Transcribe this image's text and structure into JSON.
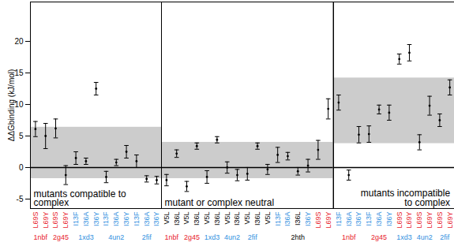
{
  "chart_data": {
    "type": "scatter",
    "ylabel": "ΔΔGbinding (kJ/mol)",
    "ylim": [
      -6.5,
      26.25
    ],
    "yticks": [
      -5,
      0,
      5,
      10,
      15,
      20
    ],
    "baseline": 0,
    "color": "#000000",
    "band_color": "#cccccc",
    "structure_colors": {
      "1nbf": "#e8202a",
      "2g45": "#e8202a",
      "1xd3": "#2f8fe0",
      "4un2": "#2f8fe0",
      "2fif": "#2f8fe0",
      "2hth": "#000000"
    },
    "panels": [
      {
        "annotation": "mutants compatible to complex",
        "categories": [
          "L69S",
          "L69Y",
          "L69S",
          "L69Y",
          "I13F",
          "I36A",
          "I36Y",
          "I13F",
          "I36A",
          "I36Y",
          "I13F",
          "I36A",
          "I36Y"
        ],
        "label_colors": [
          "#e8202a",
          "#e8202a",
          "#e8202a",
          "#e8202a",
          "#2f8fe0",
          "#2f8fe0",
          "#2f8fe0",
          "#2f8fe0",
          "#2f8fe0",
          "#2f8fe0",
          "#2f8fe0",
          "#2f8fe0",
          "#2f8fe0"
        ],
        "structures": [
          "1nbf",
          "1nbf",
          "2g45",
          "2g45",
          "1xd3",
          "1xd3",
          "1xd3",
          "4un2",
          "4un2",
          "4un2",
          "2fif",
          "2fif",
          "2fif"
        ],
        "values": [
          6.1,
          5.0,
          6.2,
          -1.2,
          1.5,
          1.0,
          12.5,
          -1.5,
          0.8,
          2.5,
          1.0,
          -1.8,
          -2.0
        ],
        "errors": [
          1.2,
          2.0,
          1.5,
          1.5,
          1.0,
          0.5,
          1.0,
          0.9,
          0.5,
          1.0,
          1.0,
          0.5,
          0.6
        ],
        "band": [
          -1.75,
          6.4
        ]
      },
      {
        "annotation": "mutant or complex neutral",
        "categories": [
          "V5L",
          "I36L",
          "V5L",
          "I36L",
          "V5L",
          "I36L",
          "V5L",
          "I36L",
          "V5L",
          "I36L",
          "V5L",
          "I13F",
          "I36A",
          "I36L",
          "I36Y",
          "L69S",
          "L69Y"
        ],
        "label_colors": [
          "#000000",
          "#000000",
          "#000000",
          "#000000",
          "#000000",
          "#000000",
          "#000000",
          "#000000",
          "#000000",
          "#000000",
          "#000000",
          "#2f8fe0",
          "#2f8fe0",
          "#000000",
          "#2f8fe0",
          "#e8202a",
          "#e8202a"
        ],
        "structures": [
          "1nbf",
          "1nbf",
          "2g45",
          "2g45",
          "1xd3",
          "1xd3",
          "4un2",
          "4un2",
          "2fif",
          "2fif",
          "2hth",
          "2hth",
          "2hth",
          "2hth",
          "2hth",
          "2hth",
          "2hth"
        ],
        "values": [
          -2.0,
          2.2,
          -3.0,
          3.4,
          -1.5,
          4.4,
          0.0,
          -1.2,
          -1.0,
          3.4,
          -0.3,
          2.0,
          1.8,
          -0.6,
          0.3,
          2.8,
          9.3
        ],
        "errors": [
          0.9,
          0.6,
          0.8,
          0.5,
          1.0,
          0.5,
          0.9,
          0.9,
          1.0,
          0.5,
          0.8,
          1.2,
          0.6,
          0.6,
          1.0,
          1.5,
          1.6
        ],
        "band": [
          -1.75,
          4.0
        ]
      },
      {
        "annotation": "mutants incompatible to complex",
        "categories": [
          "I13F",
          "I36A",
          "I36Y",
          "I13F",
          "I36A",
          "I36Y",
          "L69S",
          "L69Y",
          "L69S",
          "L69Y",
          "L69S",
          "L69Y"
        ],
        "label_colors": [
          "#2f8fe0",
          "#2f8fe0",
          "#2f8fe0",
          "#2f8fe0",
          "#2f8fe0",
          "#2f8fe0",
          "#e8202a",
          "#e8202a",
          "#e8202a",
          "#e8202a",
          "#e8202a",
          "#e8202a"
        ],
        "structures": [
          "1nbf",
          "1nbf",
          "1nbf",
          "2g45",
          "2g45",
          "2g45",
          "1xd3",
          "1xd3",
          "4un2",
          "4un2",
          "2fif",
          "2fif"
        ],
        "values": [
          10.3,
          -1.2,
          5.2,
          5.3,
          9.2,
          8.7,
          17.2,
          18.2,
          4.0,
          9.8,
          7.5,
          12.7
        ],
        "errors": [
          1.2,
          0.8,
          1.3,
          1.3,
          0.7,
          1.2,
          0.8,
          1.3,
          1.2,
          1.5,
          1.0,
          1.2
        ],
        "band": [
          3.8,
          14.2
        ]
      }
    ]
  }
}
